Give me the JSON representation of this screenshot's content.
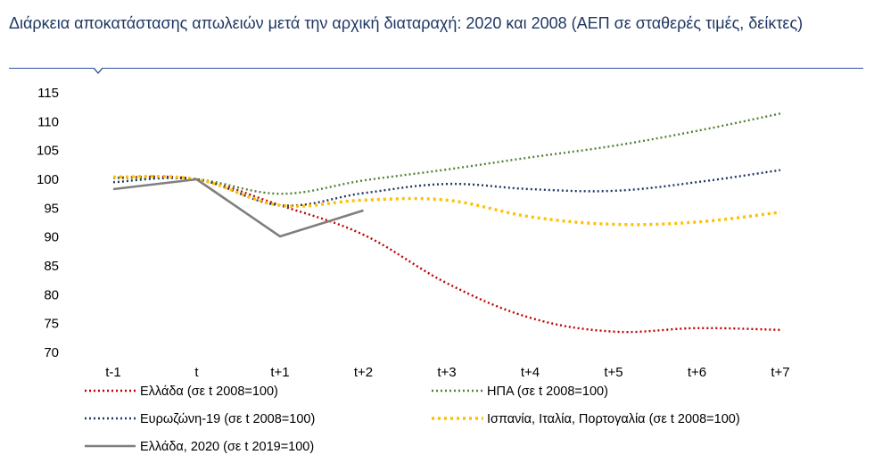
{
  "title": "Διάρκεια αποκατάστασης απωλειών μετά την αρχική διαταραχή: 2020 και 2008 (ΑΕΠ σε σταθερές τιμές, δείκτες)",
  "chart_data": {
    "type": "line",
    "title": "Διάρκεια αποκατάστασης απωλειών μετά την αρχική διαταραχή: 2020 και 2008 (ΑΕΠ σε σταθερές τιμές, δείκτες)",
    "xlabel": "",
    "ylabel": "",
    "categories": [
      "t-1",
      "t",
      "t+1",
      "t+2",
      "t+3",
      "t+4",
      "t+5",
      "t+6",
      "t+7"
    ],
    "ylim": [
      70,
      115
    ],
    "yticks": [
      70,
      75,
      80,
      85,
      90,
      95,
      100,
      105,
      110,
      115
    ],
    "grid": false,
    "legend_position": "bottom",
    "series": [
      {
        "name": "Ελλάδα (σε t 2008=100)",
        "color": "#c00000",
        "style": "dotted",
        "values": [
          100.3,
          100,
          95.5,
          90.4,
          82.0,
          76.0,
          73.6,
          74.2,
          73.9
        ]
      },
      {
        "name": "ΗΠΑ (σε t 2008=100)",
        "color": "#548235",
        "style": "dotted",
        "values": [
          100.2,
          100,
          97.5,
          99.8,
          101.7,
          103.8,
          105.8,
          108.4,
          111.4
        ]
      },
      {
        "name": "Ευρωζώνη-19 (σε t 2008=100)",
        "color": "#203864",
        "style": "dotted",
        "values": [
          99.5,
          100,
          95.5,
          97.6,
          99.2,
          98.3,
          98.0,
          99.5,
          101.6
        ]
      },
      {
        "name": "Ισπανία, Ιταλία, Πορτογαλία (σε t 2008=100)",
        "color": "#ffc000",
        "style": "dotted-thick",
        "values": [
          100.4,
          100,
          95.5,
          96.4,
          96.4,
          93.5,
          92.2,
          92.6,
          94.3
        ]
      },
      {
        "name": "Ελλάδα, 2020 (σε t 2019=100)",
        "color": "#7f7f7f",
        "style": "solid",
        "values": [
          98.3,
          100,
          90.1,
          94.6,
          null,
          null,
          null,
          null,
          null
        ]
      }
    ]
  }
}
